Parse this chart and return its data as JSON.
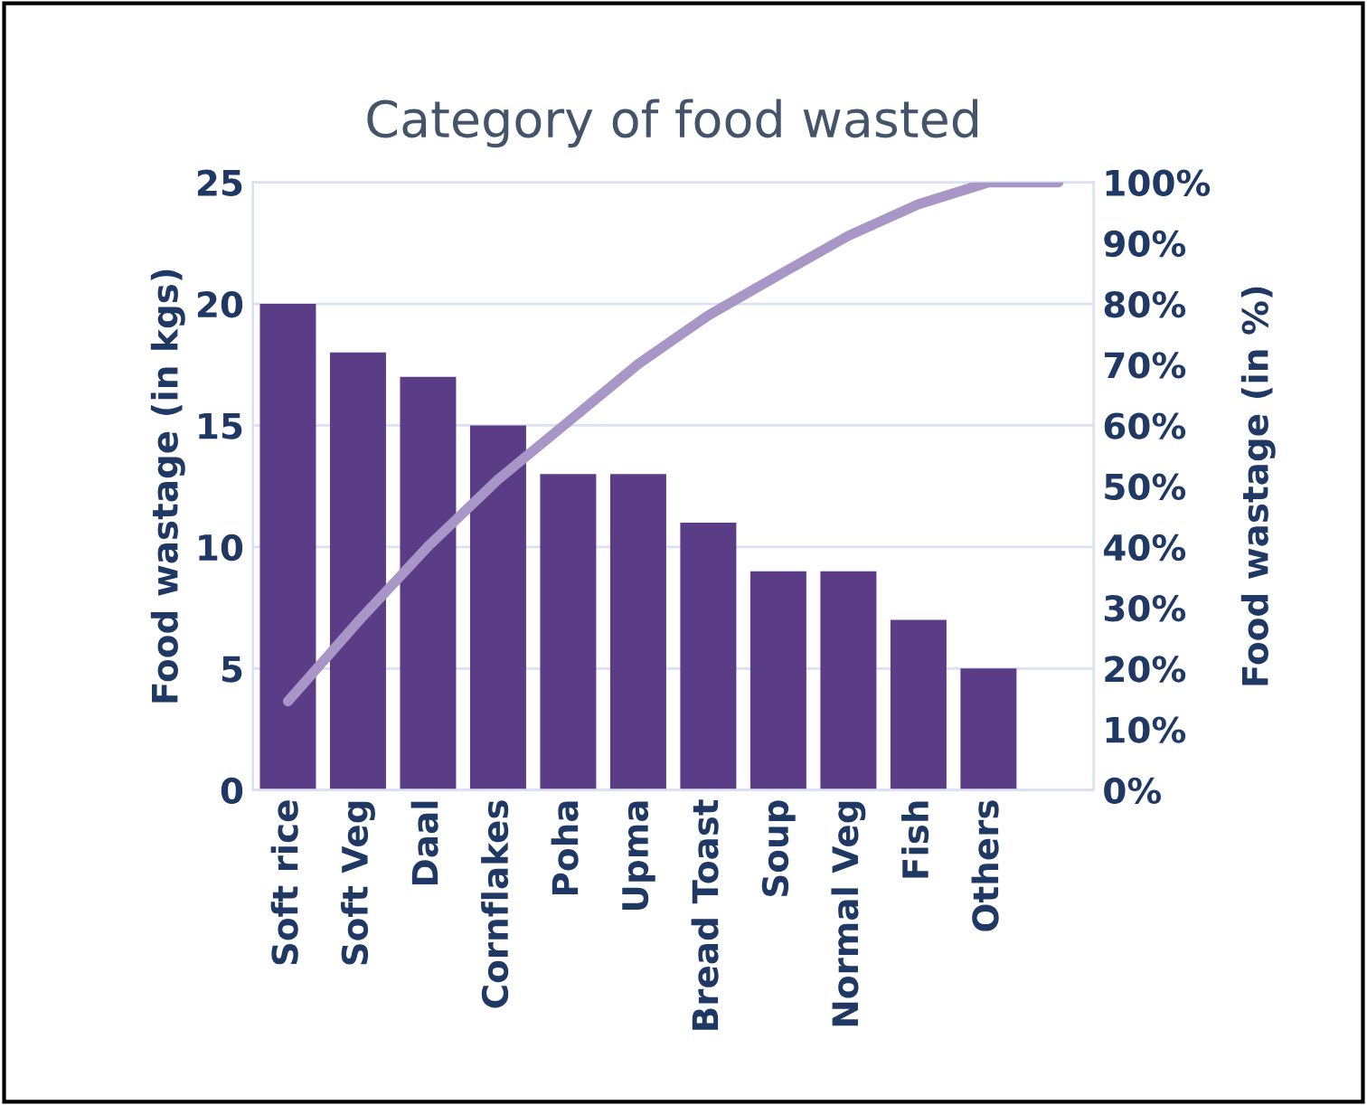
{
  "chart_data": {
    "type": "bar",
    "title": "Category of food wasted",
    "ylabel": "Food wastage (in kgs)",
    "y2label": "Food wastage (in %)",
    "categories": [
      "Soft rice",
      "Soft Veg",
      "Daal",
      "Cornflakes",
      "Poha",
      "Upma",
      "Bread Toast",
      "Soup",
      "Normal Veg",
      "Fish",
      "Others",
      null
    ],
    "series": [
      {
        "color": "#5b3d87",
        "values": [
          20,
          18,
          17,
          15,
          13,
          13,
          11,
          9,
          9,
          7,
          5,
          null
        ]
      },
      {
        "type": "line",
        "axis": "y2",
        "color": "#a796c6",
        "values": [
          14.6,
          27.7,
          40.1,
          51.1,
          60.6,
          70.1,
          78.1,
          84.7,
          91.2,
          96.4,
          100,
          100
        ]
      }
    ],
    "ylim": [
      0,
      25
    ],
    "yticks": [
      0,
      5,
      10,
      15,
      20,
      25
    ],
    "y2lim": [
      0,
      100
    ],
    "y2ticks": [
      {
        "value": 0,
        "label": "0%"
      },
      {
        "value": 10,
        "label": "10%"
      },
      {
        "value": 20,
        "label": "20%"
      },
      {
        "value": 30,
        "label": "30%"
      },
      {
        "value": 40,
        "label": "40%"
      },
      {
        "value": 50,
        "label": "50%"
      },
      {
        "value": 60,
        "label": "60%"
      },
      {
        "value": 70,
        "label": "70%"
      },
      {
        "value": 80,
        "label": "80%"
      },
      {
        "value": 90,
        "label": "90%"
      },
      {
        "value": 100,
        "label": "100%"
      }
    ],
    "grid": "y",
    "marker": "none",
    "line_style": "solid"
  }
}
